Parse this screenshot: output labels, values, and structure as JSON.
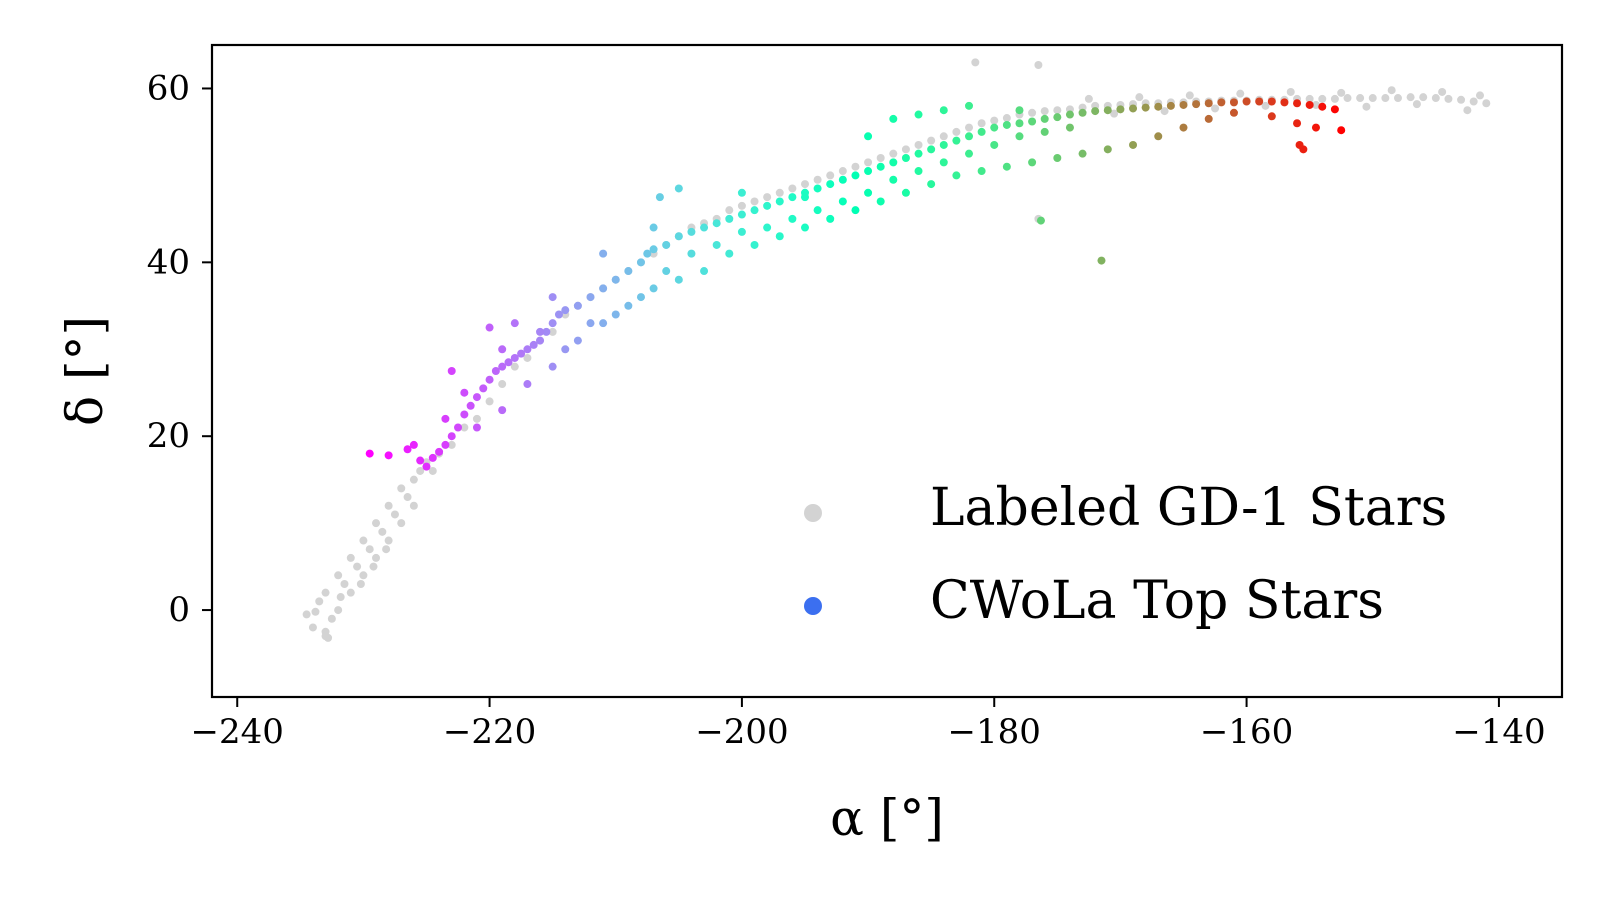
{
  "chart_data": {
    "type": "scatter",
    "xlabel": "α [°]",
    "ylabel": "δ [°]",
    "xlim": [
      -242,
      -135
    ],
    "ylim": [
      -10,
      65
    ],
    "xticks": [
      -240,
      -220,
      -200,
      -180,
      -160,
      -140
    ],
    "yticks": [
      0,
      20,
      40,
      60
    ],
    "xtick_labels": [
      "−240",
      "−220",
      "−200",
      "−180",
      "−160",
      "−140"
    ],
    "ytick_labels": [
      "0",
      "20",
      "40",
      "60"
    ],
    "grid": false,
    "legend": {
      "placement": "lower-right",
      "entries": [
        {
          "label": "Labeled GD-1 Stars",
          "color": "#d3d3d3"
        },
        {
          "label": "CWoLa Top Stars",
          "color": "#3b6ff0"
        }
      ]
    },
    "colormap": "rainbow",
    "series": [
      {
        "name": "Labeled GD-1 Stars",
        "color": "#d3d3d3",
        "points": [
          [
            -234.5,
            -0.5
          ],
          [
            -234,
            -2
          ],
          [
            -233.5,
            1
          ],
          [
            -233,
            -3
          ],
          [
            -233,
            2
          ],
          [
            -232.5,
            -1
          ],
          [
            -232,
            4
          ],
          [
            -232,
            0
          ],
          [
            -231.5,
            3
          ],
          [
            -231,
            6
          ],
          [
            -231,
            2
          ],
          [
            -230.5,
            5
          ],
          [
            -230,
            8
          ],
          [
            -230,
            4
          ],
          [
            -229.5,
            7
          ],
          [
            -229,
            10
          ],
          [
            -229,
            6
          ],
          [
            -228.5,
            9
          ],
          [
            -228,
            12
          ],
          [
            -228,
            8
          ],
          [
            -227.5,
            11
          ],
          [
            -227,
            14
          ],
          [
            -227,
            10
          ],
          [
            -226.5,
            13
          ],
          [
            -226,
            15
          ],
          [
            -226,
            12
          ],
          [
            -225.5,
            16
          ],
          [
            -225,
            17
          ],
          [
            -224.5,
            16
          ],
          [
            -224,
            18
          ],
          [
            -223,
            19
          ],
          [
            -222,
            21
          ],
          [
            -221,
            22
          ],
          [
            -220,
            24
          ],
          [
            -219,
            26
          ],
          [
            -218,
            28
          ],
          [
            -217,
            29
          ],
          [
            -216,
            31
          ],
          [
            -215,
            32
          ],
          [
            -214,
            34
          ],
          [
            -213,
            35
          ],
          [
            -212,
            36
          ],
          [
            -211,
            37
          ],
          [
            -210,
            38
          ],
          [
            -209,
            39
          ],
          [
            -208,
            40
          ],
          [
            -207,
            41
          ],
          [
            -206,
            42
          ],
          [
            -205,
            43
          ],
          [
            -204,
            44
          ],
          [
            -203,
            44.5
          ],
          [
            -202,
            45
          ],
          [
            -201,
            46
          ],
          [
            -200,
            46.5
          ],
          [
            -199,
            47
          ],
          [
            -198,
            47.5
          ],
          [
            -197,
            48
          ],
          [
            -196,
            48.5
          ],
          [
            -195,
            49
          ],
          [
            -194,
            49.5
          ],
          [
            -193,
            50
          ],
          [
            -192,
            50.5
          ],
          [
            -191,
            51
          ],
          [
            -190,
            51.5
          ],
          [
            -189,
            52
          ],
          [
            -188,
            52.5
          ],
          [
            -187,
            53
          ],
          [
            -186,
            53.5
          ],
          [
            -185,
            54
          ],
          [
            -184,
            54.5
          ],
          [
            -183,
            55
          ],
          [
            -182,
            55.5
          ],
          [
            -181,
            56
          ],
          [
            -180,
            56.3
          ],
          [
            -179,
            56.6
          ],
          [
            -178,
            57
          ],
          [
            -177,
            57.2
          ],
          [
            -176,
            57.4
          ],
          [
            -175,
            57.5
          ],
          [
            -174,
            57.6
          ],
          [
            -173,
            57.8
          ],
          [
            -172,
            58
          ],
          [
            -171,
            58
          ],
          [
            -170,
            58.1
          ],
          [
            -169,
            58.2
          ],
          [
            -168,
            58.3
          ],
          [
            -167,
            58.3
          ],
          [
            -166,
            58.4
          ],
          [
            -165,
            58.4
          ],
          [
            -164,
            58.5
          ],
          [
            -163,
            58.5
          ],
          [
            -162,
            58.6
          ],
          [
            -161,
            58.6
          ],
          [
            -160,
            58.6
          ],
          [
            -159,
            58.7
          ],
          [
            -158,
            58.7
          ],
          [
            -157,
            58.7
          ],
          [
            -156,
            58.8
          ],
          [
            -155,
            58.8
          ],
          [
            -154,
            58.8
          ],
          [
            -153,
            58.8
          ],
          [
            -152,
            58.9
          ],
          [
            -151,
            58.9
          ],
          [
            -150,
            58.9
          ],
          [
            -149,
            58.9
          ],
          [
            -148,
            58.9
          ],
          [
            -147,
            59
          ],
          [
            -146,
            59
          ],
          [
            -145,
            58.9
          ],
          [
            -144,
            58.8
          ],
          [
            -143,
            58.7
          ],
          [
            -142,
            58.5
          ],
          [
            -141,
            58.3
          ],
          [
            -141.5,
            59.2
          ],
          [
            -142.5,
            57.5
          ],
          [
            -144.5,
            59.6
          ],
          [
            -146.5,
            58.2
          ],
          [
            -148.5,
            59.8
          ],
          [
            -150.5,
            57.9
          ],
          [
            -152.5,
            59.5
          ],
          [
            -154.5,
            58.1
          ],
          [
            -156.5,
            59.6
          ],
          [
            -158.5,
            58.0
          ],
          [
            -160.5,
            59.4
          ],
          [
            -162.5,
            57.7
          ],
          [
            -164.5,
            59.2
          ],
          [
            -166.5,
            57.4
          ],
          [
            -168.5,
            59.0
          ],
          [
            -170.5,
            57.1
          ],
          [
            -172.5,
            58.8
          ],
          [
            -181.5,
            63
          ],
          [
            -176.5,
            62.7
          ],
          [
            -176.5,
            45
          ],
          [
            -233,
            -2.5
          ],
          [
            -232.8,
            -3.2
          ],
          [
            -233.8,
            -0.2
          ],
          [
            -231.8,
            1.5
          ],
          [
            -230.2,
            3
          ],
          [
            -229.2,
            5
          ],
          [
            -228.2,
            7
          ]
        ]
      },
      {
        "name": "CWoLa Top Stars",
        "colormap": "rainbow",
        "points": [
          [
            -229.5,
            18
          ],
          [
            -228,
            17.8
          ],
          [
            -226.5,
            18.5
          ],
          [
            -225,
            16.5
          ],
          [
            -224.5,
            17.5
          ],
          [
            -224,
            18.2
          ],
          [
            -223.5,
            19
          ],
          [
            -223,
            20
          ],
          [
            -222.5,
            21
          ],
          [
            -222,
            22.5
          ],
          [
            -221.5,
            23.5
          ],
          [
            -221,
            24.5
          ],
          [
            -220.5,
            25.5
          ],
          [
            -220,
            26.5
          ],
          [
            -219.5,
            27.5
          ],
          [
            -219,
            28
          ],
          [
            -218.5,
            28.5
          ],
          [
            -218,
            29
          ],
          [
            -217.5,
            29.5
          ],
          [
            -217,
            30
          ],
          [
            -216.5,
            30.5
          ],
          [
            -216,
            31
          ],
          [
            -215.5,
            32
          ],
          [
            -215,
            33
          ],
          [
            -214.5,
            34
          ],
          [
            -214,
            34.5
          ],
          [
            -213,
            35
          ],
          [
            -212,
            36
          ],
          [
            -211,
            37
          ],
          [
            -210,
            38
          ],
          [
            -209,
            39
          ],
          [
            -208,
            40
          ],
          [
            -207.5,
            41
          ],
          [
            -207,
            41.5
          ],
          [
            -206,
            42
          ],
          [
            -205,
            43
          ],
          [
            -204,
            43.5
          ],
          [
            -203,
            44
          ],
          [
            -202,
            44.5
          ],
          [
            -201,
            45
          ],
          [
            -200,
            45.5
          ],
          [
            -199,
            46
          ],
          [
            -198,
            46.5
          ],
          [
            -197,
            47
          ],
          [
            -196,
            47.5
          ],
          [
            -195,
            48
          ],
          [
            -194,
            48.5
          ],
          [
            -193,
            49
          ],
          [
            -192,
            49.5
          ],
          [
            -191,
            50
          ],
          [
            -190,
            50.5
          ],
          [
            -189,
            51
          ],
          [
            -188,
            51.5
          ],
          [
            -187,
            52
          ],
          [
            -186,
            52.5
          ],
          [
            -185,
            53
          ],
          [
            -184,
            53.5
          ],
          [
            -183,
            54
          ],
          [
            -182,
            54.5
          ],
          [
            -181,
            55
          ],
          [
            -180,
            55.5
          ],
          [
            -179,
            55.8
          ],
          [
            -178,
            56
          ],
          [
            -177,
            56.2
          ],
          [
            -176,
            56.5
          ],
          [
            -175,
            56.7
          ],
          [
            -174,
            57
          ],
          [
            -173,
            57.2
          ],
          [
            -172,
            57.4
          ],
          [
            -171,
            57.5
          ],
          [
            -170,
            57.6
          ],
          [
            -169,
            57.7
          ],
          [
            -168,
            57.8
          ],
          [
            -167,
            57.9
          ],
          [
            -166,
            58
          ],
          [
            -165,
            58.1
          ],
          [
            -164,
            58.2
          ],
          [
            -163,
            58.3
          ],
          [
            -162,
            58.4
          ],
          [
            -161,
            58.4
          ],
          [
            -160,
            58.5
          ],
          [
            -159,
            58.5
          ],
          [
            -158,
            58.5
          ],
          [
            -157,
            58.4
          ],
          [
            -156,
            58.3
          ],
          [
            -155,
            58.1
          ],
          [
            -154,
            57.9
          ],
          [
            -153,
            57.6
          ],
          [
            -155.5,
            53
          ],
          [
            -155.8,
            53.5
          ],
          [
            -154.5,
            55.5
          ],
          [
            -152.5,
            55.2
          ],
          [
            -156,
            56
          ],
          [
            -158,
            56.8
          ],
          [
            -161,
            57.2
          ],
          [
            -163,
            56.5
          ],
          [
            -165,
            55.5
          ],
          [
            -167,
            54.5
          ],
          [
            -169,
            53.5
          ],
          [
            -171,
            53
          ],
          [
            -173,
            52.5
          ],
          [
            -175,
            52
          ],
          [
            -177,
            51.5
          ],
          [
            -179,
            51
          ],
          [
            -181,
            50.5
          ],
          [
            -183,
            50
          ],
          [
            -185,
            49
          ],
          [
            -187,
            48
          ],
          [
            -189,
            47
          ],
          [
            -191,
            46
          ],
          [
            -193,
            45
          ],
          [
            -195,
            44
          ],
          [
            -197,
            43
          ],
          [
            -199,
            42
          ],
          [
            -201,
            41
          ],
          [
            -203,
            39
          ],
          [
            -205,
            38
          ],
          [
            -207,
            37
          ],
          [
            -209,
            35
          ],
          [
            -211,
            33
          ],
          [
            -213,
            31
          ],
          [
            -215,
            28
          ],
          [
            -217,
            26
          ],
          [
            -219,
            23
          ],
          [
            -221,
            21
          ],
          [
            -223,
            27.5
          ],
          [
            -220,
            32.5
          ],
          [
            -218,
            33
          ],
          [
            -216,
            32
          ],
          [
            -214,
            30
          ],
          [
            -212,
            33
          ],
          [
            -210,
            34
          ],
          [
            -208,
            36
          ],
          [
            -206,
            39
          ],
          [
            -204,
            41
          ],
          [
            -202,
            42
          ],
          [
            -200,
            43.5
          ],
          [
            -198,
            44
          ],
          [
            -196,
            45
          ],
          [
            -194,
            46
          ],
          [
            -192,
            47
          ],
          [
            -190,
            48
          ],
          [
            -188,
            49.5
          ],
          [
            -186,
            50.5
          ],
          [
            -184,
            51.5
          ],
          [
            -182,
            52.5
          ],
          [
            -180,
            53.5
          ],
          [
            -178,
            54.5
          ],
          [
            -176,
            55
          ],
          [
            -174,
            55.5
          ],
          [
            -205,
            48.5
          ],
          [
            -206.5,
            47.5
          ],
          [
            -200,
            48
          ],
          [
            -195,
            47.5
          ],
          [
            -188,
            56.5
          ],
          [
            -186,
            57
          ],
          [
            -184,
            57.5
          ],
          [
            -182,
            58
          ],
          [
            -178,
            57.5
          ],
          [
            -190,
            54.5
          ],
          [
            -171.5,
            40.2
          ],
          [
            -176.3,
            44.8
          ],
          [
            -207,
            44
          ],
          [
            -211,
            41
          ],
          [
            -215,
            36
          ],
          [
            -219,
            30
          ],
          [
            -222,
            25
          ],
          [
            -223.5,
            22
          ],
          [
            -225.5,
            17.2
          ],
          [
            -226,
            19
          ]
        ]
      }
    ]
  }
}
